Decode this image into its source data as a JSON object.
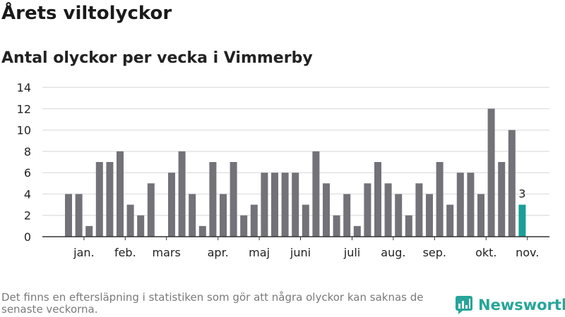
{
  "header": {
    "title": "Årets viltolyckor",
    "subtitle": "Antal olyckor per vecka i Vimmerby"
  },
  "footer": {
    "note": "Det finns en eftersläpning i statistiken som gör att några olyckor kan saknas de senaste veckorna.",
    "brand": "Newsworthy"
  },
  "colors": {
    "bar": "#737278",
    "highlight": "#1a9e98",
    "grid": "#dedede",
    "axis": "#333333",
    "brand": "#27a59a"
  },
  "chart_data": {
    "type": "bar",
    "week_values": [
      4,
      4,
      1,
      7,
      7,
      8,
      3,
      2,
      5,
      0,
      6,
      8,
      4,
      1,
      7,
      4,
      7,
      2,
      3,
      6,
      6,
      6,
      6,
      3,
      8,
      5,
      2,
      4,
      1,
      5,
      7,
      5,
      4,
      2,
      5,
      4,
      7,
      3,
      6,
      6,
      4,
      12,
      7,
      10,
      3
    ],
    "month_labels": [
      {
        "label": "jan.",
        "week": 1.5
      },
      {
        "label": "feb.",
        "week": 5.5
      },
      {
        "label": "mars",
        "week": 9.5
      },
      {
        "label": "apr.",
        "week": 14.5
      },
      {
        "label": "maj",
        "week": 18.5
      },
      {
        "label": "juni",
        "week": 22.5
      },
      {
        "label": "juli",
        "week": 27.5
      },
      {
        "label": "aug.",
        "week": 31.5
      },
      {
        "label": "sep.",
        "week": 35.5
      },
      {
        "label": "okt.",
        "week": 40.5
      },
      {
        "label": "nov.",
        "week": 44.5
      }
    ],
    "yticks": [
      0,
      2,
      4,
      6,
      8,
      10,
      12,
      14
    ],
    "ylim": [
      0,
      14
    ],
    "highlight_last": true,
    "last_value_label": "3",
    "grid": true
  }
}
